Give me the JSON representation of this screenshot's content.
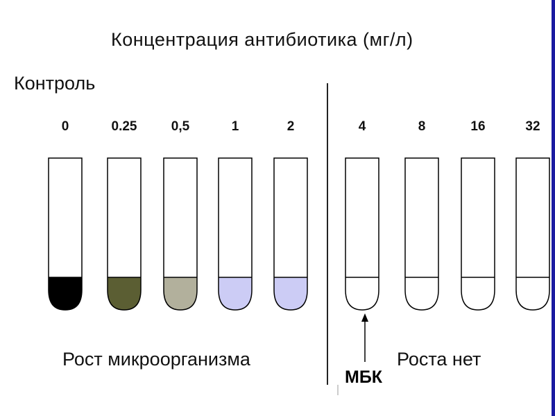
{
  "title": "Концентрация антибиотика (мг/л)",
  "control_label": "Контроль",
  "growth_label": "Рост микроорганизма",
  "no_growth_label": "Роста нет",
  "mbk_label": "МБК",
  "tubes": [
    {
      "concentration": "0",
      "fill": "#000000",
      "growth": true
    },
    {
      "concentration": "0.25",
      "fill": "#5b5e33",
      "growth": true
    },
    {
      "concentration": "0,5",
      "fill": "#b2b09c",
      "growth": true
    },
    {
      "concentration": "1",
      "fill": "#ccccf5",
      "growth": true
    },
    {
      "concentration": "2",
      "fill": "#ccccf5",
      "growth": true
    },
    {
      "concentration": "4",
      "fill": "#ffffff",
      "growth": false
    },
    {
      "concentration": "8",
      "fill": "#ffffff",
      "growth": false
    },
    {
      "concentration": "16",
      "fill": "#ffffff",
      "growth": false
    },
    {
      "concentration": "32",
      "fill": "#ffffff",
      "growth": false
    }
  ],
  "colors": {
    "outline": "#000000",
    "divider": "#222222",
    "side_bar": "#1a1aa0"
  }
}
